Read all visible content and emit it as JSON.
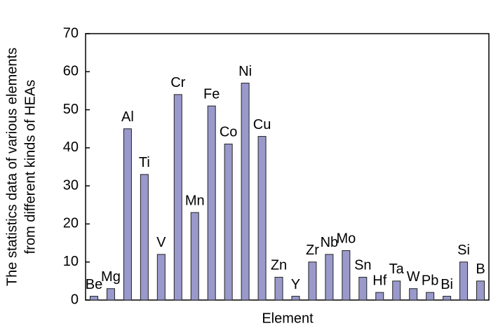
{
  "chart_data": {
    "type": "bar",
    "x_label": "Element",
    "y_label": [
      "The statistics data of various elements",
      "from different kinds of HEAs"
    ],
    "categories": [
      "Be",
      "Mg",
      "Al",
      "Ti",
      "V",
      "Cr",
      "Mn",
      "Fe",
      "Co",
      "Ni",
      "Cu",
      "Zn",
      "Y",
      "Zr",
      "Nb",
      "Mo",
      "Sn",
      "Hf",
      "Ta",
      "W",
      "Pb",
      "Bi",
      "Si",
      "B"
    ],
    "values": [
      1,
      3,
      45,
      33,
      12,
      54,
      23,
      51,
      41,
      57,
      43,
      6,
      1,
      10,
      12,
      13,
      6,
      2,
      5,
      3,
      2,
      1,
      10,
      5
    ],
    "color": "#9999cc",
    "ylim": [
      0,
      70
    ],
    "yticks": [
      0,
      10,
      20,
      30,
      40,
      50,
      60,
      70
    ],
    "grid": false
  }
}
